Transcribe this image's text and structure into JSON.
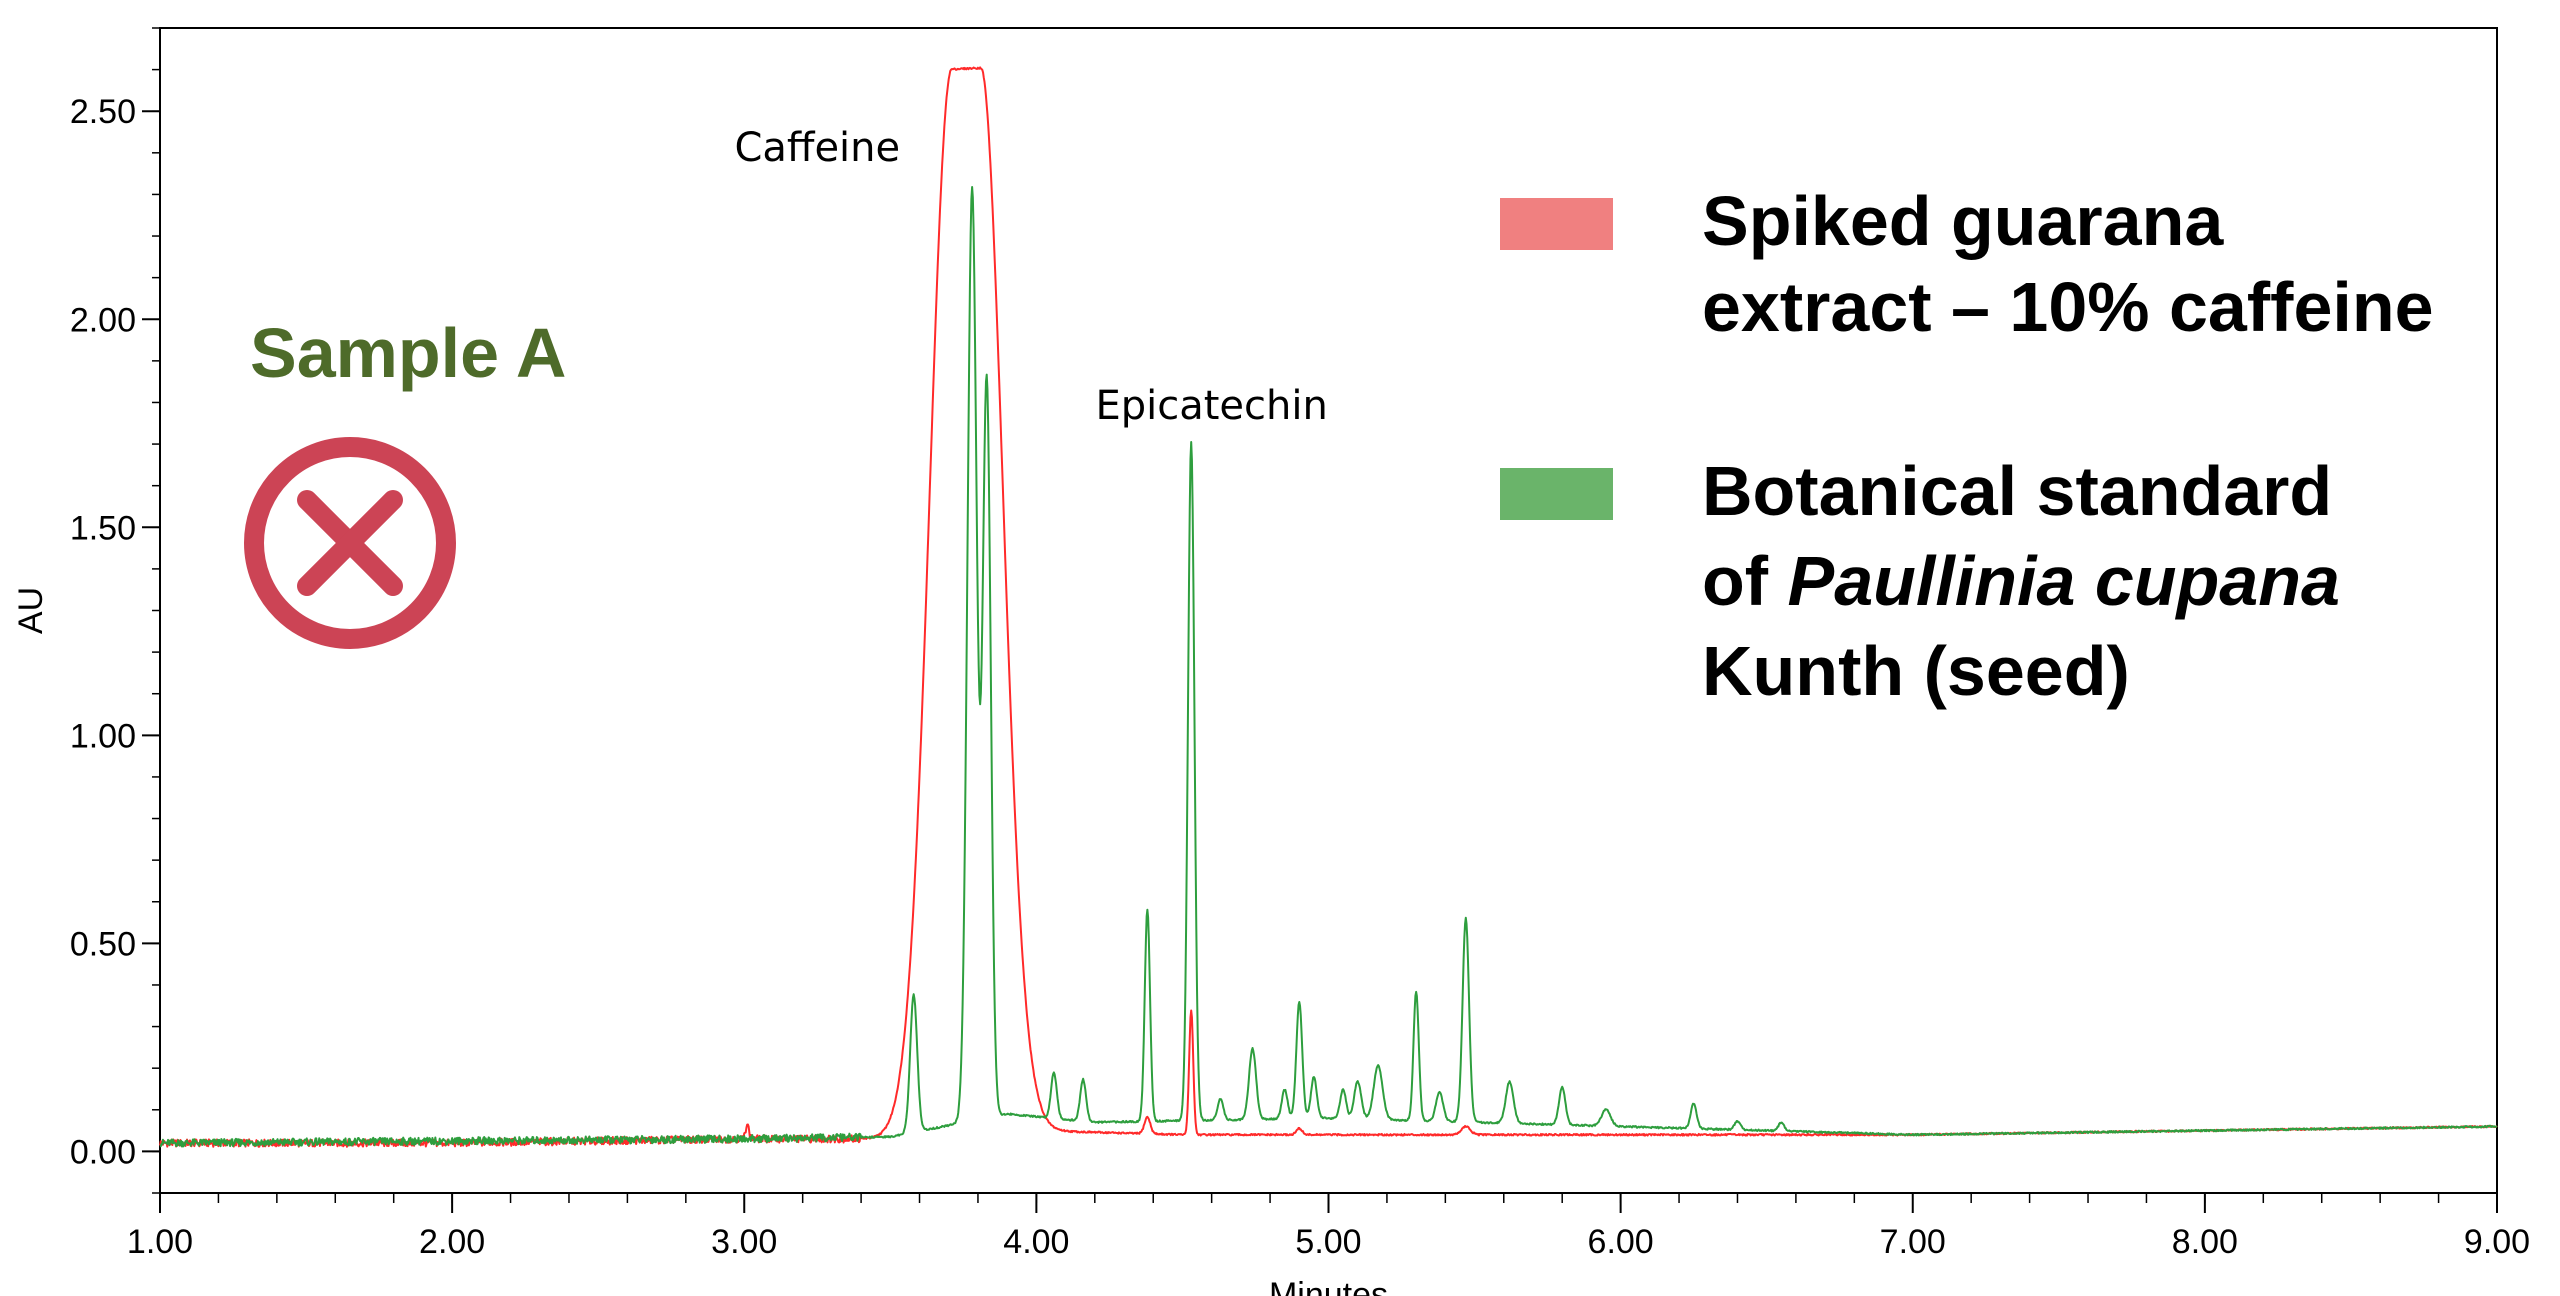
{
  "chart_data": {
    "type": "line",
    "xlabel": "Minutes",
    "ylabel": "AU",
    "xlim": [
      1.0,
      9.0
    ],
    "ylim": [
      -0.1,
      2.7
    ],
    "x_ticks": [
      "1.00",
      "2.00",
      "3.00",
      "4.00",
      "5.00",
      "6.00",
      "7.00",
      "8.00",
      "9.00"
    ],
    "y_ticks": [
      "0.00",
      "0.50",
      "1.00",
      "1.50",
      "2.00",
      "2.50"
    ],
    "grid": false,
    "legend_position": "top-right",
    "sample_label": "Sample A",
    "annotations": [
      {
        "text": "Caffeine",
        "x": 3.25,
        "y": 2.38
      },
      {
        "text": "Epicatechin",
        "x": 4.6,
        "y": 1.76
      }
    ],
    "series": [
      {
        "name": "Spiked guarana extract – 10% caffeine",
        "color": "#f08080",
        "line_color": "#ff2a2a",
        "baseline": [
          [
            1.0,
            0.02
          ],
          [
            2.0,
            0.02
          ],
          [
            3.0,
            0.03
          ],
          [
            3.6,
            0.03
          ],
          [
            3.68,
            0.04
          ],
          [
            4.0,
            0.05
          ],
          [
            4.5,
            0.04
          ],
          [
            5.0,
            0.04
          ],
          [
            6.0,
            0.04
          ],
          [
            7.0,
            0.04
          ],
          [
            8.0,
            0.05
          ],
          [
            9.0,
            0.06
          ]
        ],
        "peaks": [
          {
            "x": 3.76,
            "h": 2.56,
            "w": 0.075,
            "flat": 0.05
          },
          {
            "x": 3.01,
            "h": 0.04,
            "w": 0.005
          },
          {
            "x": 4.38,
            "h": 0.04,
            "w": 0.01
          },
          {
            "x": 4.53,
            "h": 0.3,
            "w": 0.007
          },
          {
            "x": 4.9,
            "h": 0.015,
            "w": 0.01
          },
          {
            "x": 5.47,
            "h": 0.02,
            "w": 0.015
          }
        ]
      },
      {
        "name": "Botanical standard of Paullinia cupana Kunth (seed)",
        "color": "#6ab46a",
        "line_color": "#2e9e3e",
        "baseline": [
          [
            1.0,
            0.02
          ],
          [
            2.0,
            0.025
          ],
          [
            3.0,
            0.03
          ],
          [
            3.5,
            0.035
          ],
          [
            3.9,
            0.09
          ],
          [
            4.2,
            0.07
          ],
          [
            5.0,
            0.08
          ],
          [
            6.0,
            0.06
          ],
          [
            7.0,
            0.04
          ],
          [
            8.0,
            0.05
          ],
          [
            9.0,
            0.06
          ]
        ],
        "peaks": [
          {
            "x": 3.58,
            "h": 0.33,
            "w": 0.012
          },
          {
            "x": 3.78,
            "h": 2.24,
            "w": 0.016
          },
          {
            "x": 3.83,
            "h": 1.77,
            "w": 0.014
          },
          {
            "x": 4.06,
            "h": 0.11,
            "w": 0.01
          },
          {
            "x": 4.16,
            "h": 0.1,
            "w": 0.01
          },
          {
            "x": 4.38,
            "h": 0.51,
            "w": 0.009
          },
          {
            "x": 4.53,
            "h": 1.63,
            "w": 0.011
          },
          {
            "x": 4.63,
            "h": 0.05,
            "w": 0.01
          },
          {
            "x": 4.74,
            "h": 0.17,
            "w": 0.012
          },
          {
            "x": 4.85,
            "h": 0.07,
            "w": 0.01
          },
          {
            "x": 4.9,
            "h": 0.28,
            "w": 0.01
          },
          {
            "x": 4.95,
            "h": 0.1,
            "w": 0.01
          },
          {
            "x": 5.05,
            "h": 0.07,
            "w": 0.01
          },
          {
            "x": 5.1,
            "h": 0.09,
            "w": 0.012
          },
          {
            "x": 5.17,
            "h": 0.13,
            "w": 0.015
          },
          {
            "x": 5.3,
            "h": 0.31,
            "w": 0.009
          },
          {
            "x": 5.38,
            "h": 0.07,
            "w": 0.012
          },
          {
            "x": 5.47,
            "h": 0.49,
            "w": 0.011
          },
          {
            "x": 5.62,
            "h": 0.1,
            "w": 0.013
          },
          {
            "x": 5.8,
            "h": 0.09,
            "w": 0.011
          },
          {
            "x": 5.95,
            "h": 0.04,
            "w": 0.015
          },
          {
            "x": 6.25,
            "h": 0.06,
            "w": 0.01
          },
          {
            "x": 6.4,
            "h": 0.02,
            "w": 0.01
          },
          {
            "x": 6.55,
            "h": 0.02,
            "w": 0.01
          }
        ]
      }
    ]
  },
  "legend": {
    "items": [
      {
        "lines": [
          [
            {
              "text": "Spiked  guarana",
              "italic": false
            }
          ],
          [
            {
              "text": "extract – 10% caffeine",
              "italic": false
            }
          ]
        ]
      },
      {
        "lines": [
          [
            {
              "text": "Botanical standard",
              "italic": false
            }
          ],
          [
            {
              "text": "of ",
              "italic": false
            },
            {
              "text": "Paullinia  cupana",
              "italic": true
            }
          ],
          [
            {
              "text": "Kunth (seed)",
              "italic": false
            }
          ]
        ]
      }
    ]
  },
  "colors": {
    "reject_icon": "#cc4455",
    "sample_label": "#4e6b2a"
  },
  "icons": {
    "reject": "x-circle-icon"
  }
}
